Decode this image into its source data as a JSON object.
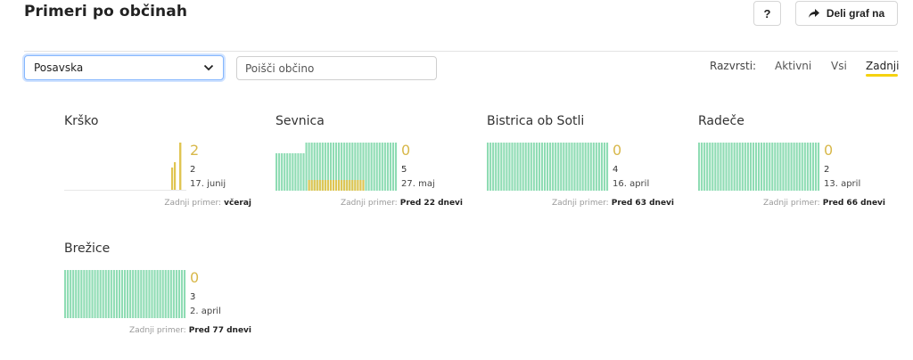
{
  "header": {
    "title": "Primeri po občinah",
    "help_label": "?",
    "share_label": "Deli graf na",
    "share_icon": "share-arrow-icon"
  },
  "filters": {
    "region_selected": "Posavska",
    "search_placeholder": "Poišči občino",
    "sort_label": "Razvrsti:",
    "sort_options": [
      "Aktivni",
      "Vsi",
      "Zadnji"
    ],
    "sort_active": "Zadnji"
  },
  "colors": {
    "accent": "#f5d20f",
    "bar_green": "#8fdcb4",
    "bar_yellow": "#e0c552",
    "value_yellow": "#d8b84a"
  },
  "municipalities": [
    {
      "name": "Krško",
      "active": "2",
      "count": "2",
      "date": "17. junij",
      "last_label": "Zadnji primer:",
      "last_value": "včeraj"
    },
    {
      "name": "Sevnica",
      "active": "0",
      "count": "5",
      "date": "27. maj",
      "last_label": "Zadnji primer:",
      "last_value": "Pred 22 dnevi"
    },
    {
      "name": "Bistrica ob Sotli",
      "active": "0",
      "count": "4",
      "date": "16. april",
      "last_label": "Zadnji primer:",
      "last_value": "Pred 63 dnevi"
    },
    {
      "name": "Radeče",
      "active": "0",
      "count": "2",
      "date": "13. april",
      "last_label": "Zadnji primer:",
      "last_value": "Pred 66 dnevi"
    },
    {
      "name": "Brežice",
      "active": "0",
      "count": "3",
      "date": "2. april",
      "last_label": "Zadnji primer:",
      "last_value": "Pred 77 dnevi"
    }
  ]
}
